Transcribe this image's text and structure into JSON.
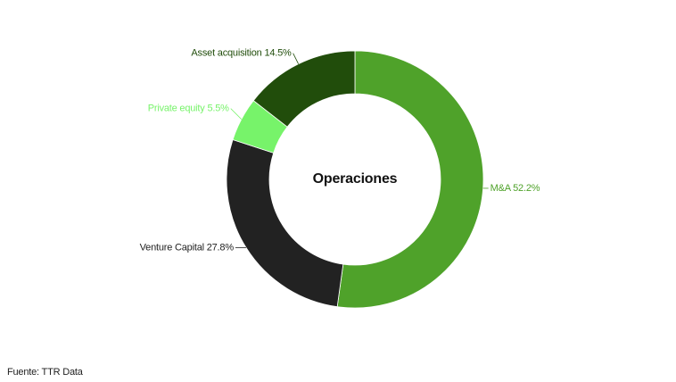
{
  "chart_data": {
    "type": "donut",
    "title": "Operaciones",
    "categories": [
      "M&A",
      "Venture Capital",
      "Private equity",
      "Asset acquisition"
    ],
    "values": [
      52.2,
      27.8,
      5.5,
      14.5
    ],
    "value_labels": [
      "52.2%",
      "27.8%",
      "5.5%",
      "14.5%"
    ],
    "colors": [
      "#4fa22a",
      "#222222",
      "#77f36a",
      "#214d0b"
    ],
    "label_colors": [
      "#4fa22a",
      "#222222",
      "#77f36a",
      "#214d0b"
    ],
    "source": "Fuente: TTR Data"
  }
}
